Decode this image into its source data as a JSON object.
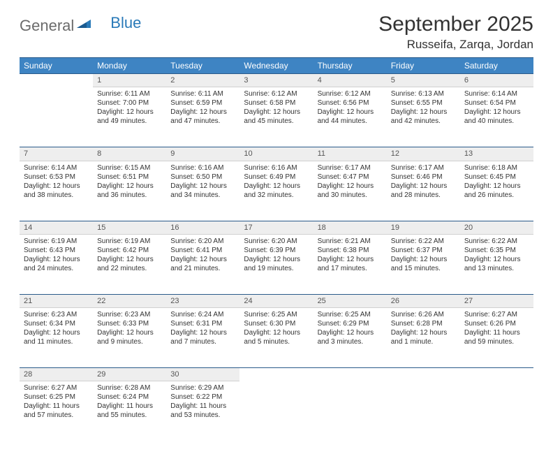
{
  "logo": {
    "text1": "General",
    "text2": "Blue"
  },
  "header": {
    "month_title": "September 2025",
    "location": "Russeifa, Zarqa, Jordan"
  },
  "colors": {
    "header_bg": "#3e84c3",
    "header_border": "#2a5a8a",
    "daynum_bg": "#eeeeee",
    "text": "#333333"
  },
  "weekdays": [
    "Sunday",
    "Monday",
    "Tuesday",
    "Wednesday",
    "Thursday",
    "Friday",
    "Saturday"
  ],
  "weeks": [
    {
      "days": [
        {
          "num": "",
          "lines": [
            "",
            "",
            "",
            ""
          ]
        },
        {
          "num": "1",
          "lines": [
            "Sunrise: 6:11 AM",
            "Sunset: 7:00 PM",
            "Daylight: 12 hours",
            "and 49 minutes."
          ]
        },
        {
          "num": "2",
          "lines": [
            "Sunrise: 6:11 AM",
            "Sunset: 6:59 PM",
            "Daylight: 12 hours",
            "and 47 minutes."
          ]
        },
        {
          "num": "3",
          "lines": [
            "Sunrise: 6:12 AM",
            "Sunset: 6:58 PM",
            "Daylight: 12 hours",
            "and 45 minutes."
          ]
        },
        {
          "num": "4",
          "lines": [
            "Sunrise: 6:12 AM",
            "Sunset: 6:56 PM",
            "Daylight: 12 hours",
            "and 44 minutes."
          ]
        },
        {
          "num": "5",
          "lines": [
            "Sunrise: 6:13 AM",
            "Sunset: 6:55 PM",
            "Daylight: 12 hours",
            "and 42 minutes."
          ]
        },
        {
          "num": "6",
          "lines": [
            "Sunrise: 6:14 AM",
            "Sunset: 6:54 PM",
            "Daylight: 12 hours",
            "and 40 minutes."
          ]
        }
      ]
    },
    {
      "days": [
        {
          "num": "7",
          "lines": [
            "Sunrise: 6:14 AM",
            "Sunset: 6:53 PM",
            "Daylight: 12 hours",
            "and 38 minutes."
          ]
        },
        {
          "num": "8",
          "lines": [
            "Sunrise: 6:15 AM",
            "Sunset: 6:51 PM",
            "Daylight: 12 hours",
            "and 36 minutes."
          ]
        },
        {
          "num": "9",
          "lines": [
            "Sunrise: 6:16 AM",
            "Sunset: 6:50 PM",
            "Daylight: 12 hours",
            "and 34 minutes."
          ]
        },
        {
          "num": "10",
          "lines": [
            "Sunrise: 6:16 AM",
            "Sunset: 6:49 PM",
            "Daylight: 12 hours",
            "and 32 minutes."
          ]
        },
        {
          "num": "11",
          "lines": [
            "Sunrise: 6:17 AM",
            "Sunset: 6:47 PM",
            "Daylight: 12 hours",
            "and 30 minutes."
          ]
        },
        {
          "num": "12",
          "lines": [
            "Sunrise: 6:17 AM",
            "Sunset: 6:46 PM",
            "Daylight: 12 hours",
            "and 28 minutes."
          ]
        },
        {
          "num": "13",
          "lines": [
            "Sunrise: 6:18 AM",
            "Sunset: 6:45 PM",
            "Daylight: 12 hours",
            "and 26 minutes."
          ]
        }
      ]
    },
    {
      "days": [
        {
          "num": "14",
          "lines": [
            "Sunrise: 6:19 AM",
            "Sunset: 6:43 PM",
            "Daylight: 12 hours",
            "and 24 minutes."
          ]
        },
        {
          "num": "15",
          "lines": [
            "Sunrise: 6:19 AM",
            "Sunset: 6:42 PM",
            "Daylight: 12 hours",
            "and 22 minutes."
          ]
        },
        {
          "num": "16",
          "lines": [
            "Sunrise: 6:20 AM",
            "Sunset: 6:41 PM",
            "Daylight: 12 hours",
            "and 21 minutes."
          ]
        },
        {
          "num": "17",
          "lines": [
            "Sunrise: 6:20 AM",
            "Sunset: 6:39 PM",
            "Daylight: 12 hours",
            "and 19 minutes."
          ]
        },
        {
          "num": "18",
          "lines": [
            "Sunrise: 6:21 AM",
            "Sunset: 6:38 PM",
            "Daylight: 12 hours",
            "and 17 minutes."
          ]
        },
        {
          "num": "19",
          "lines": [
            "Sunrise: 6:22 AM",
            "Sunset: 6:37 PM",
            "Daylight: 12 hours",
            "and 15 minutes."
          ]
        },
        {
          "num": "20",
          "lines": [
            "Sunrise: 6:22 AM",
            "Sunset: 6:35 PM",
            "Daylight: 12 hours",
            "and 13 minutes."
          ]
        }
      ]
    },
    {
      "days": [
        {
          "num": "21",
          "lines": [
            "Sunrise: 6:23 AM",
            "Sunset: 6:34 PM",
            "Daylight: 12 hours",
            "and 11 minutes."
          ]
        },
        {
          "num": "22",
          "lines": [
            "Sunrise: 6:23 AM",
            "Sunset: 6:33 PM",
            "Daylight: 12 hours",
            "and 9 minutes."
          ]
        },
        {
          "num": "23",
          "lines": [
            "Sunrise: 6:24 AM",
            "Sunset: 6:31 PM",
            "Daylight: 12 hours",
            "and 7 minutes."
          ]
        },
        {
          "num": "24",
          "lines": [
            "Sunrise: 6:25 AM",
            "Sunset: 6:30 PM",
            "Daylight: 12 hours",
            "and 5 minutes."
          ]
        },
        {
          "num": "25",
          "lines": [
            "Sunrise: 6:25 AM",
            "Sunset: 6:29 PM",
            "Daylight: 12 hours",
            "and 3 minutes."
          ]
        },
        {
          "num": "26",
          "lines": [
            "Sunrise: 6:26 AM",
            "Sunset: 6:28 PM",
            "Daylight: 12 hours",
            "and 1 minute."
          ]
        },
        {
          "num": "27",
          "lines": [
            "Sunrise: 6:27 AM",
            "Sunset: 6:26 PM",
            "Daylight: 11 hours",
            "and 59 minutes."
          ]
        }
      ]
    },
    {
      "days": [
        {
          "num": "28",
          "lines": [
            "Sunrise: 6:27 AM",
            "Sunset: 6:25 PM",
            "Daylight: 11 hours",
            "and 57 minutes."
          ]
        },
        {
          "num": "29",
          "lines": [
            "Sunrise: 6:28 AM",
            "Sunset: 6:24 PM",
            "Daylight: 11 hours",
            "and 55 minutes."
          ]
        },
        {
          "num": "30",
          "lines": [
            "Sunrise: 6:29 AM",
            "Sunset: 6:22 PM",
            "Daylight: 11 hours",
            "and 53 minutes."
          ]
        },
        {
          "num": "",
          "lines": [
            "",
            "",
            "",
            ""
          ]
        },
        {
          "num": "",
          "lines": [
            "",
            "",
            "",
            ""
          ]
        },
        {
          "num": "",
          "lines": [
            "",
            "",
            "",
            ""
          ]
        },
        {
          "num": "",
          "lines": [
            "",
            "",
            "",
            ""
          ]
        }
      ]
    }
  ]
}
